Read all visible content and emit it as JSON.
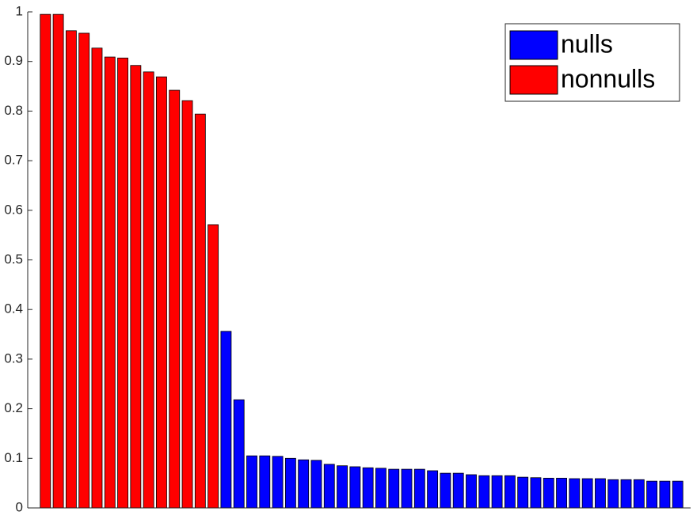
{
  "chart_data": {
    "type": "bar",
    "categories": [
      null,
      null,
      null,
      null,
      null,
      null,
      null,
      null,
      null,
      null,
      null,
      null,
      null,
      null,
      null,
      null,
      null,
      null,
      null,
      null,
      null,
      null,
      null,
      null,
      null,
      null,
      null,
      null,
      null,
      null,
      null,
      null,
      null,
      null,
      null,
      null,
      null,
      null,
      null,
      null,
      null,
      null,
      null,
      null,
      null,
      null,
      null,
      null,
      null,
      null
    ],
    "series": [
      {
        "name": "nulls",
        "color": "#0000ff",
        "values": [
          null,
          null,
          null,
          null,
          null,
          null,
          null,
          null,
          null,
          null,
          null,
          null,
          null,
          null,
          0.356,
          0.218,
          0.105,
          0.105,
          0.104,
          0.1,
          0.097,
          0.096,
          0.088,
          0.085,
          0.083,
          0.081,
          0.08,
          0.078,
          0.078,
          0.078,
          0.075,
          0.07,
          0.07,
          0.067,
          0.065,
          0.065,
          0.065,
          0.062,
          0.061,
          0.06,
          0.06,
          0.059,
          0.059,
          0.059,
          0.057,
          0.057,
          0.057,
          0.054,
          0.054,
          0.054
        ]
      },
      {
        "name": "nonnulls",
        "color": "#ff0000",
        "values": [
          0.995,
          0.995,
          0.962,
          0.957,
          0.927,
          0.909,
          0.907,
          0.892,
          0.879,
          0.869,
          0.842,
          0.821,
          0.794,
          0.571,
          null,
          null,
          null,
          null,
          null,
          null,
          null,
          null,
          null,
          null,
          null,
          null,
          null,
          null,
          null,
          null,
          null,
          null,
          null,
          null,
          null,
          null,
          null,
          null,
          null,
          null,
          null,
          null,
          null,
          null,
          null,
          null,
          null,
          null,
          null,
          null
        ]
      }
    ],
    "ylim": [
      0,
      1
    ],
    "yticks": [
      0,
      0.1,
      0.2,
      0.3,
      0.4,
      0.5,
      0.6,
      0.7,
      0.8,
      0.9,
      1
    ],
    "grid": false,
    "legend": "northeast"
  }
}
